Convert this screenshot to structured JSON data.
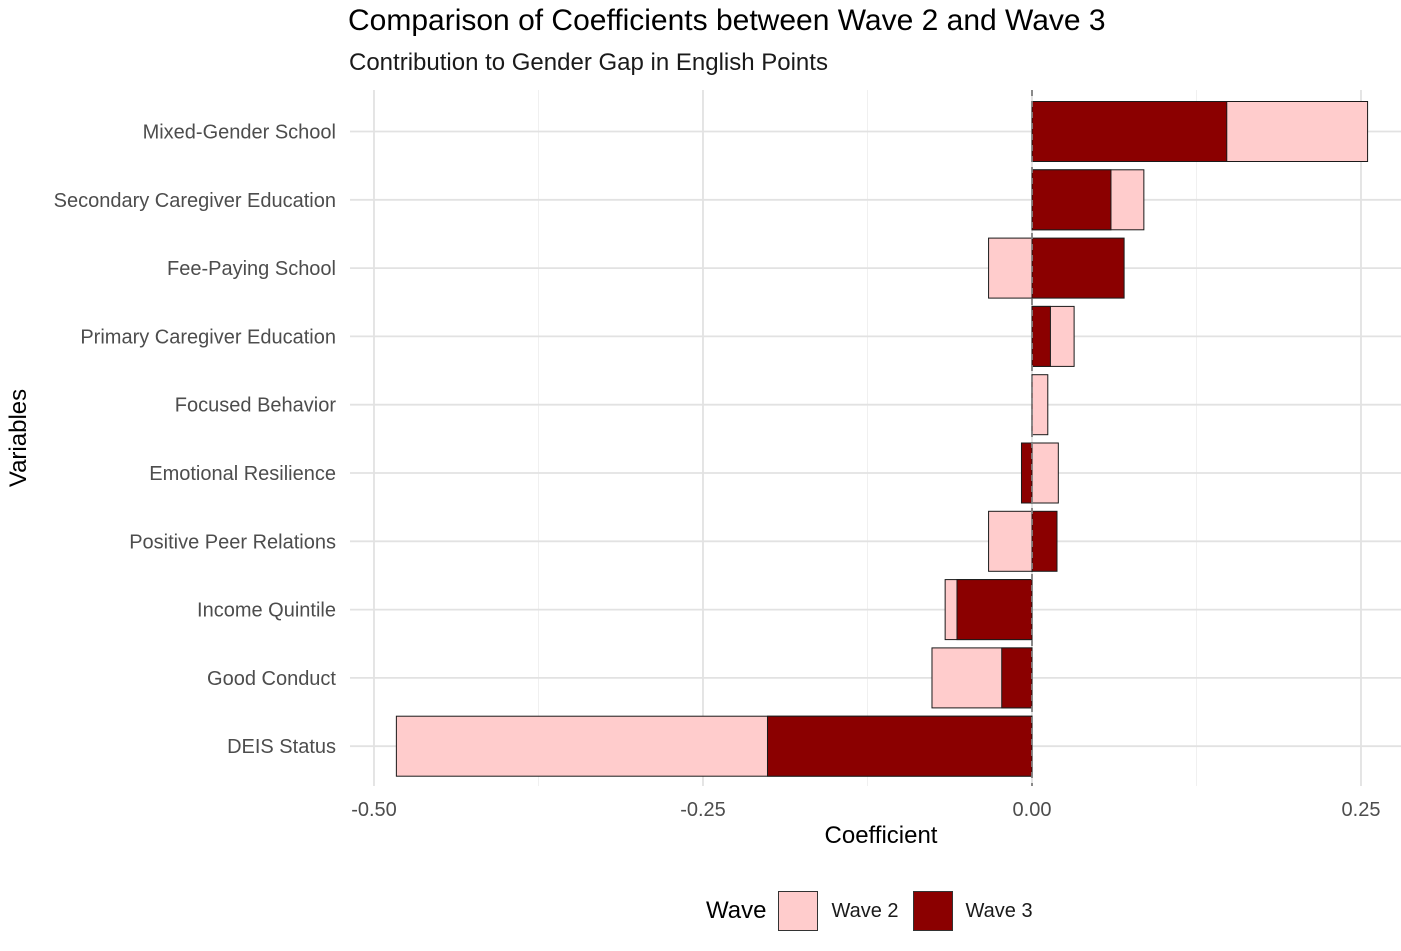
{
  "title": "Comparison of Coefficients between Wave 2 and Wave 3",
  "subtitle": "Contribution to Gender Gap in English Points",
  "legend": {
    "title": "Wave",
    "items": [
      {
        "label": "Wave 2",
        "color": "#FFCCCC"
      },
      {
        "label": "Wave 3",
        "color": "#8B0000"
      }
    ]
  },
  "chart_data": {
    "type": "bar",
    "orientation": "horizontal",
    "title": "Comparison of Coefficients between Wave 2 and Wave 3",
    "subtitle": "Contribution to Gender Gap in English Points",
    "xlabel": "Coefficient",
    "ylabel": "Variables",
    "xlim": [
      -0.5,
      0.28
    ],
    "xticks": [
      -0.5,
      -0.25,
      0.0,
      0.25
    ],
    "xtick_labels": [
      "-0.50",
      "-0.25",
      "0.00",
      "0.25"
    ],
    "reference_line": 0,
    "grid": true,
    "legend_position": "bottom",
    "categories": [
      "Mixed-Gender School",
      "Secondary Caregiver Education",
      "Fee-Paying School",
      "Primary Caregiver Education",
      "Focused Behavior",
      "Emotional Resilience",
      "Positive Peer Relations",
      "Income Quintile",
      "Good Conduct",
      "DEIS Status"
    ],
    "series": [
      {
        "name": "Wave 2",
        "color": "#FFCCCC",
        "values": [
          0.255,
          0.085,
          -0.033,
          0.032,
          0.012,
          0.02,
          -0.033,
          -0.066,
          -0.076,
          -0.483
        ]
      },
      {
        "name": "Wave 3",
        "color": "#8B0000",
        "values": [
          0.148,
          0.06,
          0.07,
          0.014,
          0.0,
          -0.008,
          0.019,
          -0.057,
          -0.023,
          -0.201
        ]
      }
    ]
  }
}
